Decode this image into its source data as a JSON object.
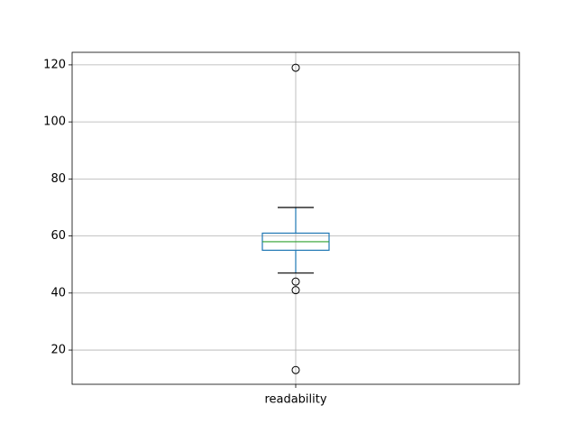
{
  "chart_data": {
    "type": "box",
    "categories": [
      "readability"
    ],
    "boxes": [
      {
        "min": 47,
        "q1": 55,
        "median": 58,
        "q3": 61,
        "max": 70,
        "fliers": [
          119,
          44,
          41,
          13
        ]
      }
    ],
    "box_color": "#1f77b4",
    "median_color": "#2ca02c",
    "cap_color": "#000000",
    "ylim": [
      8.0,
      124.4
    ],
    "yticks": [
      20,
      40,
      60,
      80,
      100,
      120
    ],
    "grid": true
  }
}
